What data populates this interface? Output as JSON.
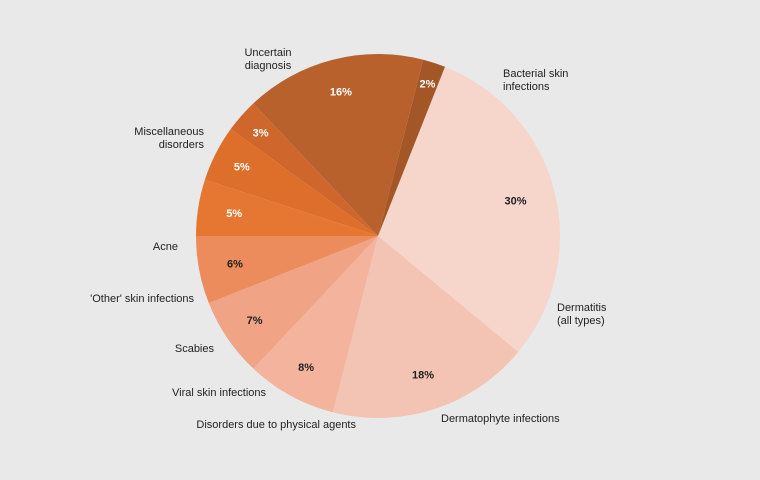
{
  "chart_data": {
    "type": "pie",
    "title": "",
    "start_angle_deg": -68.4,
    "direction": "clockwise",
    "slices": [
      {
        "label": [
          "Bacterial skin",
          "infections"
        ],
        "value": 30,
        "value_label": "30%",
        "color": "#f6d5cb",
        "pct_color": "#222222"
      },
      {
        "label": [
          "Dermatitis",
          "(all types)"
        ],
        "value": 18,
        "value_label": "18%",
        "color": "#f3c3b3",
        "pct_color": "#222222"
      },
      {
        "label": [
          "Dermatophyte infections"
        ],
        "value": 8,
        "value_label": "8%",
        "color": "#f3b39d",
        "pct_color": "#222222"
      },
      {
        "label": [
          "Disorders due to physical agents"
        ],
        "value": 7,
        "value_label": "7%",
        "color": "#f0a385",
        "pct_color": "#222222"
      },
      {
        "label": [
          "Viral skin infections"
        ],
        "value": 6,
        "value_label": "6%",
        "color": "#ec8b5b",
        "pct_color": "#222222"
      },
      {
        "label": [
          "Scabies"
        ],
        "value": 5,
        "value_label": "5%",
        "color": "#e67733",
        "pct_color": "#ffffff"
      },
      {
        "label": [
          "'Other' skin infections"
        ],
        "value": 5,
        "value_label": "5%",
        "color": "#de6f2b",
        "pct_color": "#ffffff"
      },
      {
        "label": [
          "Acne"
        ],
        "value": 3,
        "value_label": "3%",
        "color": "#cf662c",
        "pct_color": "#ffffff"
      },
      {
        "label": [
          "Miscellaneous",
          "disorders"
        ],
        "value": 16,
        "value_label": "16%",
        "color": "#b9612c",
        "pct_color": "#ffffff"
      },
      {
        "label": [
          "Uncertain",
          "diagnosis"
        ],
        "value": 2,
        "value_label": "2%",
        "color": "#a35727",
        "pct_color": "#ffffff"
      }
    ]
  }
}
